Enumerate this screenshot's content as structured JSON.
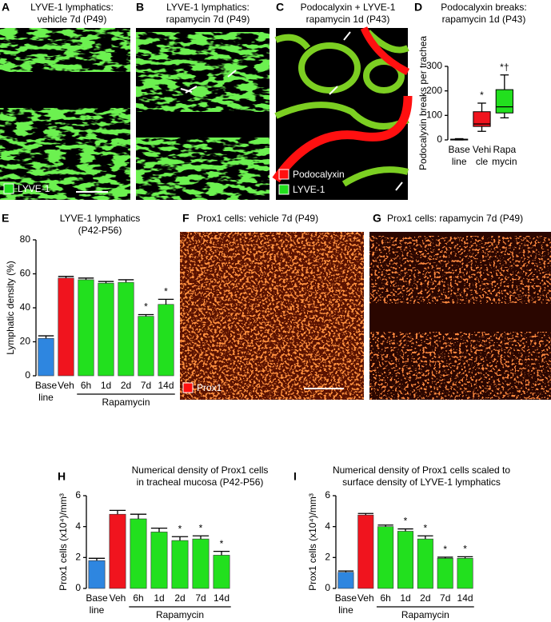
{
  "images": [
    {
      "letter": "A",
      "title": "LYVE-1 lymphatics:\nvehicle 7d (P49)",
      "legend": [
        "LYVE-1"
      ]
    },
    {
      "letter": "B",
      "title": "LYVE-1 lymphatics:\nrapamycin 7d (P49)"
    },
    {
      "letter": "C",
      "title": "Podocalyxin + LYVE-1\nrapamycin 1d (P43)",
      "legend": [
        "Podocalyxin",
        "LYVE-1"
      ]
    },
    {
      "letter": "F",
      "title": "Prox1 cells: vehicle 7d (P49)",
      "legend": [
        "Prox1"
      ]
    },
    {
      "letter": "G",
      "title": "Prox1 cells: rapamycin 7d (P49)"
    }
  ],
  "chart_data": [
    {
      "type": "box",
      "letter": "D",
      "title": "Podocalyxin breaks:\nrapamycin 1d (P43)",
      "y_label": "Podocalyxin breaks per trachea",
      "categories": [
        "Base\nline",
        "Vehi\ncle",
        "Rapa\nmycin"
      ],
      "min": [
        0,
        35,
        90
      ],
      "q1": [
        1,
        55,
        110
      ],
      "median": [
        2,
        65,
        135
      ],
      "q3": [
        3,
        115,
        205
      ],
      "max": [
        5,
        150,
        265
      ],
      "colors": [
        "#222222",
        "#f0141e",
        "#22e01e"
      ],
      "annotations": [
        null,
        "*",
        "*†"
      ],
      "ylim": [
        0,
        300
      ],
      "yticks": [
        0,
        100,
        200,
        300
      ]
    },
    {
      "type": "bar",
      "letter": "E",
      "title": "LYVE-1 lymphatics\n(P42-P56)",
      "y_label": "Lymphatic density (%)",
      "categories": [
        "Base\nline",
        "Veh",
        "6h",
        "1d",
        "2d",
        "7d",
        "14d"
      ],
      "values": [
        22,
        57.5,
        56.5,
        54.5,
        55,
        35,
        42
      ],
      "errors": [
        1.5,
        1,
        1,
        1,
        1.5,
        1,
        3
      ],
      "colors": [
        "#2e86e0",
        "#f0141e",
        "#22e01e",
        "#22e01e",
        "#22e01e",
        "#22e01e",
        "#22e01e"
      ],
      "annotations": [
        null,
        null,
        null,
        null,
        null,
        "*",
        "*"
      ],
      "group_label": "Rapamycin",
      "ylim": [
        0,
        80
      ],
      "yticks": [
        0,
        20,
        40,
        60,
        80
      ]
    },
    {
      "type": "bar",
      "letter": "H",
      "title": "Numerical density of Prox1 cells\nin tracheal mucosa (P42-P56)",
      "y_label": "Prox1 cells (x10⁴)/mm³",
      "categories": [
        "Base\nline",
        "Veh",
        "6h",
        "1d",
        "2d",
        "7d",
        "14d"
      ],
      "values": [
        1.8,
        4.8,
        4.5,
        3.65,
        3.1,
        3.2,
        2.15
      ],
      "errors": [
        0.15,
        0.25,
        0.3,
        0.25,
        0.25,
        0.2,
        0.25
      ],
      "colors": [
        "#2e86e0",
        "#f0141e",
        "#22e01e",
        "#22e01e",
        "#22e01e",
        "#22e01e",
        "#22e01e"
      ],
      "annotations": [
        null,
        null,
        null,
        null,
        "*",
        "*",
        "*"
      ],
      "group_label": "Rapamycin",
      "ylim": [
        0,
        6
      ],
      "yticks": [
        0,
        2,
        4,
        6
      ]
    },
    {
      "type": "bar",
      "letter": "I",
      "title": "Numerical density of Prox1 cells scaled to\nsurface density of LYVE-1 lymphatics",
      "y_label": "Prox1 cells (x10⁴)/mm³",
      "categories": [
        "Base\nline",
        "Veh",
        "6h",
        "1d",
        "2d",
        "7d",
        "14d"
      ],
      "values": [
        1.05,
        4.75,
        4.0,
        3.7,
        3.2,
        1.95,
        1.95
      ],
      "errors": [
        0.08,
        0.1,
        0.1,
        0.15,
        0.2,
        0.07,
        0.1
      ],
      "colors": [
        "#2e86e0",
        "#f0141e",
        "#22e01e",
        "#22e01e",
        "#22e01e",
        "#22e01e",
        "#22e01e"
      ],
      "annotations": [
        null,
        null,
        null,
        "*",
        "*",
        "*",
        "*"
      ],
      "group_label": "Rapamycin",
      "ylim": [
        0,
        6
      ],
      "yticks": [
        0,
        2,
        4,
        6
      ]
    }
  ]
}
